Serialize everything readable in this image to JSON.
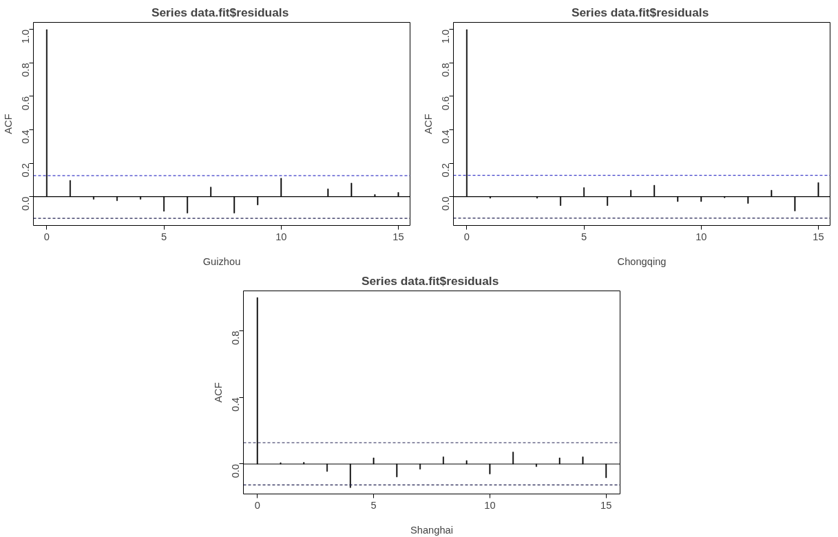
{
  "chart_data": [
    {
      "type": "bar",
      "title": "Series  data.fit$residuals",
      "xlabel": "Guizhou",
      "ylabel": "ACF",
      "x": [
        0,
        1,
        2,
        3,
        4,
        5,
        6,
        7,
        8,
        9,
        10,
        11,
        12,
        13,
        14,
        15
      ],
      "series": [
        {
          "color": "#000000",
          "values": [
            1.0,
            0.097,
            -0.016,
            -0.025,
            -0.016,
            -0.088,
            -0.099,
            0.057,
            -0.099,
            -0.05,
            0.11,
            0.0,
            0.046,
            0.081,
            0.012,
            0.025
          ]
        }
      ],
      "xlim": [
        -0.57,
        15.5
      ],
      "ylim": [
        -0.173,
        1.043
      ],
      "xticks": [
        0,
        5,
        10,
        15
      ],
      "yticks": [
        {
          "value": 0,
          "label": "0.0"
        },
        {
          "value": 0.2,
          "label": "0.2"
        },
        {
          "value": 0.4,
          "label": "0.4"
        },
        {
          "value": 0.6,
          "label": "0.6"
        },
        {
          "value": 0.8,
          "label": "0.8"
        },
        {
          "value": 1,
          "label": "1.0"
        }
      ],
      "ref_lines": [
        {
          "axis": "y",
          "value": 0,
          "color": "#000000",
          "line_style": "solid"
        },
        {
          "axis": "y",
          "value": 0.125,
          "color": "#3c3cc8",
          "line_style": "dashed"
        },
        {
          "axis": "y",
          "value": -0.13,
          "color": "#202050",
          "line_style": "dashed"
        }
      ]
    },
    {
      "type": "bar",
      "title": "Series  data.fit$residuals",
      "xlabel": "Chongqing",
      "ylabel": "ACF",
      "x": [
        0,
        1,
        2,
        3,
        4,
        5,
        6,
        7,
        8,
        9,
        10,
        11,
        12,
        13,
        14,
        15
      ],
      "series": [
        {
          "color": "#000000",
          "values": [
            1.0,
            -0.01,
            0.0,
            -0.01,
            -0.054,
            0.054,
            -0.054,
            0.038,
            0.068,
            -0.03,
            -0.03,
            -0.007,
            -0.041,
            0.038,
            -0.086,
            0.084
          ]
        }
      ],
      "xlim": [
        -0.57,
        15.5
      ],
      "ylim": [
        -0.173,
        1.043
      ],
      "xticks": [
        0,
        5,
        10,
        15
      ],
      "yticks": [
        {
          "value": 0,
          "label": "0.0"
        },
        {
          "value": 0.2,
          "label": "0.2"
        },
        {
          "value": 0.4,
          "label": "0.4"
        },
        {
          "value": 0.6,
          "label": "0.6"
        },
        {
          "value": 0.8,
          "label": "0.8"
        },
        {
          "value": 1,
          "label": "1.0"
        }
      ],
      "ref_lines": [
        {
          "axis": "y",
          "value": 0,
          "color": "#000000",
          "line_style": "solid"
        },
        {
          "axis": "y",
          "value": 0.127,
          "color": "#3c3cc8",
          "line_style": "dashed"
        },
        {
          "axis": "y",
          "value": -0.129,
          "color": "#202050",
          "line_style": "dashed"
        }
      ]
    },
    {
      "type": "bar",
      "title": "Series  data.fit$residuals",
      "xlabel": "Shanghai",
      "ylabel": "ACF",
      "x": [
        0,
        1,
        2,
        3,
        4,
        5,
        6,
        7,
        8,
        9,
        10,
        11,
        12,
        13,
        14,
        15
      ],
      "series": [
        {
          "color": "#000000",
          "values": [
            1.0,
            0.008,
            0.01,
            -0.045,
            -0.142,
            0.037,
            -0.078,
            -0.031,
            0.043,
            0.021,
            -0.06,
            0.072,
            -0.016,
            0.037,
            0.043,
            -0.083
          ]
        }
      ],
      "xlim": [
        -0.6,
        15.6
      ],
      "ylim": [
        -0.18,
        1.04
      ],
      "xticks": [
        0,
        5,
        10,
        15
      ],
      "yticks": [
        {
          "value": 0,
          "label": "0.0"
        },
        {
          "value": 0.4,
          "label": "0.4"
        },
        {
          "value": 0.8,
          "label": "0.8"
        }
      ],
      "ref_lines": [
        {
          "axis": "y",
          "value": 0,
          "color": "#000000",
          "line_style": "solid"
        },
        {
          "axis": "y",
          "value": 0.128,
          "color": "#202050",
          "line_style": "dashed"
        },
        {
          "axis": "y",
          "value": -0.126,
          "color": "#202050",
          "line_style": "dashed"
        }
      ]
    }
  ]
}
